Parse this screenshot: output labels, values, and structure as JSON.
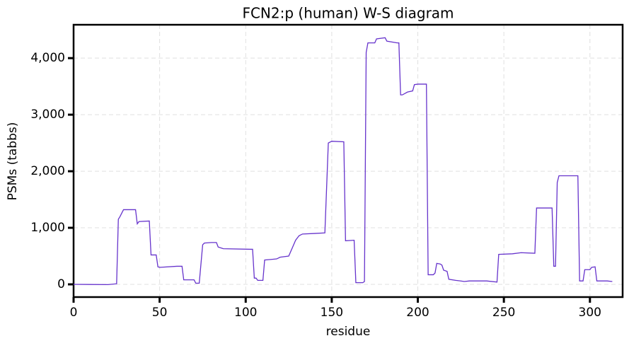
{
  "chart_data": {
    "type": "line",
    "title": "FCN2:p (human) W-S diagram",
    "x_label": "residue",
    "y_label": "PSMs (tabbs)",
    "color": "#6633cc",
    "grid": true,
    "xlim": [
      0,
      319
    ],
    "ylim": [
      -225,
      4590
    ],
    "xticks": [
      0,
      50,
      100,
      150,
      200,
      250,
      300
    ],
    "yticks": [
      0,
      {
        "value": 1000,
        "label": "1,000"
      },
      {
        "value": 2000,
        "label": "2,000"
      },
      {
        "value": 3000,
        "label": "3,000"
      },
      {
        "value": 4000,
        "label": "4,000"
      }
    ],
    "x": [
      0,
      20,
      25,
      26,
      27,
      29,
      36,
      37,
      38,
      44,
      45,
      48,
      49,
      50,
      60,
      63,
      64,
      70,
      71,
      73,
      75,
      76,
      80,
      83,
      84,
      87,
      103,
      104,
      105,
      106,
      107,
      110,
      111,
      118,
      120,
      125,
      127,
      129,
      131,
      133,
      140,
      146,
      147,
      148,
      150,
      157,
      158,
      163,
      164,
      168,
      169,
      170,
      171,
      175,
      176,
      181,
      182,
      188,
      189,
      190,
      191,
      194,
      197,
      198,
      200,
      205,
      206,
      209,
      210,
      211,
      213,
      214,
      215,
      217,
      218,
      222,
      225,
      227,
      230,
      240,
      246,
      247,
      255,
      260,
      268,
      269,
      278,
      279,
      280,
      281,
      282,
      293,
      294,
      296,
      297,
      300,
      301,
      303,
      304,
      310,
      313
    ],
    "values": [
      0,
      -5,
      10,
      1150,
      1200,
      1320,
      1320,
      1070,
      1110,
      1120,
      520,
      520,
      310,
      300,
      320,
      320,
      80,
      80,
      20,
      20,
      700,
      730,
      740,
      740,
      660,
      630,
      620,
      620,
      110,
      110,
      70,
      70,
      430,
      450,
      480,
      500,
      640,
      780,
      860,
      890,
      900,
      910,
      1700,
      2500,
      2530,
      2520,
      770,
      780,
      30,
      30,
      50,
      4100,
      4270,
      4270,
      4340,
      4360,
      4300,
      4270,
      4270,
      3350,
      3350,
      3400,
      3420,
      3530,
      3540,
      3540,
      170,
      170,
      200,
      370,
      360,
      340,
      250,
      230,
      90,
      70,
      60,
      50,
      60,
      60,
      40,
      530,
      540,
      560,
      550,
      1350,
      1350,
      320,
      320,
      1800,
      1920,
      1920,
      60,
      60,
      260,
      260,
      300,
      310,
      60,
      60,
      50
    ]
  }
}
